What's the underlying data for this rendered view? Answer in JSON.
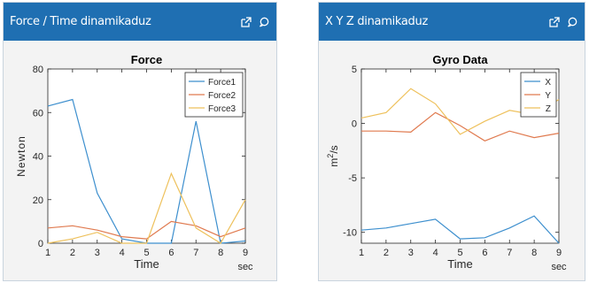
{
  "panels": [
    {
      "title": "Force / Time dinamikaduz",
      "icons": [
        "external-link-icon",
        "comment-icon"
      ]
    },
    {
      "title": "X Y Z dinamikaduz",
      "icons": [
        "external-link-icon",
        "comment-icon"
      ]
    }
  ],
  "chart_data": [
    {
      "type": "line",
      "title": "Force",
      "xlabel": "Time",
      "x_unit": "sec",
      "ylabel": "Newton",
      "x": [
        1,
        2,
        3,
        4,
        5,
        6,
        7,
        8,
        9
      ],
      "xlim": [
        1,
        9
      ],
      "ylim": [
        0,
        80
      ],
      "xticks": [
        1,
        2,
        3,
        4,
        5,
        6,
        7,
        8,
        9
      ],
      "yticks": [
        0,
        20,
        40,
        60,
        80
      ],
      "legend": "top-right",
      "grid": false,
      "series": [
        {
          "name": "Force1",
          "color": "#3d8fce",
          "values": [
            63,
            66,
            23,
            2,
            0,
            0,
            56,
            0,
            1
          ]
        },
        {
          "name": "Force2",
          "color": "#e07a4f",
          "values": [
            7,
            8,
            6,
            3,
            2,
            10,
            8,
            3,
            7
          ]
        },
        {
          "name": "Force3",
          "color": "#eec15c",
          "values": [
            0,
            2,
            5,
            0,
            0,
            32,
            7,
            0,
            20
          ]
        }
      ]
    },
    {
      "type": "line",
      "title": "Gyro Data",
      "xlabel": "Time",
      "x_unit": "sec",
      "ylabel_parts": [
        "m",
        "2",
        "/s"
      ],
      "x": [
        1,
        2,
        3,
        4,
        5,
        6,
        7,
        8,
        9
      ],
      "xlim": [
        1,
        9
      ],
      "ylim": [
        -11,
        5
      ],
      "xticks": [
        1,
        2,
        3,
        4,
        5,
        6,
        7,
        8,
        9
      ],
      "yticks": [
        5,
        0,
        -5,
        -10
      ],
      "legend": "top-right",
      "grid": false,
      "series": [
        {
          "name": "X",
          "color": "#3d8fce",
          "values": [
            -9.8,
            -9.6,
            -9.2,
            -8.8,
            -10.6,
            -10.5,
            -9.6,
            -8.5,
            -11
          ]
        },
        {
          "name": "Y",
          "color": "#e07a4f",
          "values": [
            -0.7,
            -0.7,
            -0.8,
            1.0,
            -0.2,
            -1.6,
            -0.7,
            -1.3,
            -0.9
          ]
        },
        {
          "name": "Z",
          "color": "#eec15c",
          "values": [
            0.5,
            1.0,
            3.2,
            1.8,
            -1.0,
            0.2,
            1.2,
            0.8,
            2.2
          ]
        }
      ]
    }
  ]
}
